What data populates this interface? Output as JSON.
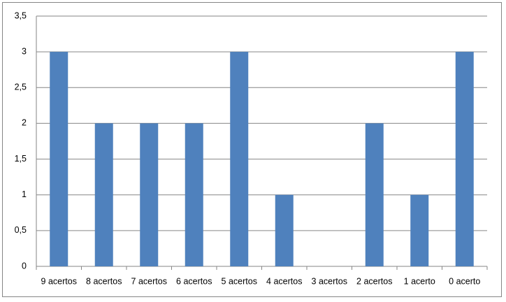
{
  "chart_data": {
    "type": "bar",
    "categories": [
      "9 acertos",
      "8 acertos",
      "7 acertos",
      "6 acertos",
      "5 acertos",
      "4 acertos",
      "3 acertos",
      "2 acertos",
      "1 acerto",
      "0 acerto"
    ],
    "values": [
      3,
      2,
      2,
      2,
      3,
      1,
      0,
      2,
      1,
      3
    ],
    "color": "#4f81bd",
    "ylim": [
      0,
      3.5
    ],
    "yticks": [
      0,
      {
        "value": 0.5,
        "label": "0,5"
      },
      1,
      {
        "value": 1.5,
        "label": "1,5"
      },
      2,
      {
        "value": 2.5,
        "label": "2,5"
      },
      3,
      {
        "value": 3.5,
        "label": "3,5"
      }
    ],
    "grid": true
  }
}
